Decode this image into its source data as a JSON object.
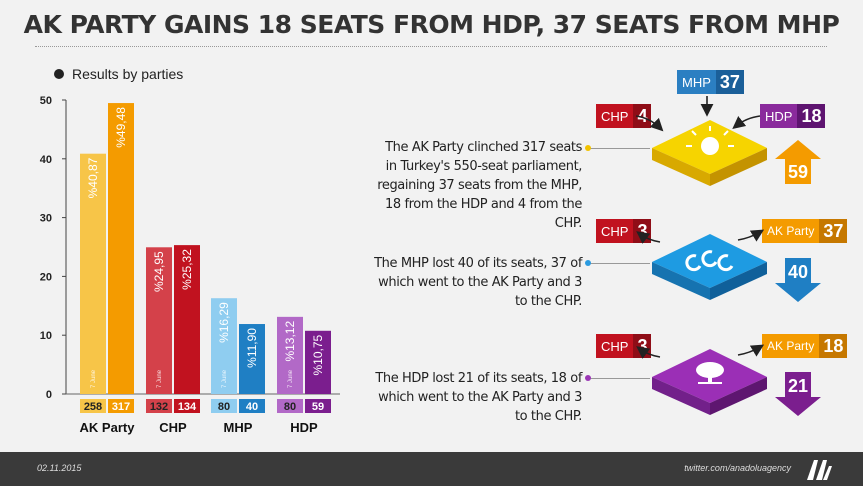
{
  "title": "AK PARTY GAINS 18 SEATS FROM HDP, 37 SEATS FROM MHP",
  "legend_label": "Results by parties",
  "chart_data": {
    "type": "bar",
    "title": "Results by parties",
    "categories": [
      "AK Party",
      "CHP",
      "MHP",
      "HDP"
    ],
    "series": [
      {
        "name": "7 June",
        "values": [
          40.87,
          24.95,
          16.29,
          13.12
        ],
        "labels": [
          "%40,87",
          "%24,95",
          "%16,29",
          "%13,12"
        ],
        "seats": [
          258,
          132,
          80,
          80
        ]
      },
      {
        "values": [
          49.48,
          25.32,
          11.9,
          10.75
        ],
        "labels": [
          "%49,48",
          "%25,32",
          "%11,90",
          "%10,75"
        ],
        "seats": [
          317,
          134,
          40,
          59
        ]
      }
    ],
    "colors": {
      "AK Party": [
        "#f7c548",
        "#f49b00"
      ],
      "CHP": [
        "#d4414a",
        "#c1121f"
      ],
      "MHP": [
        "#8fcdf0",
        "#1f7fc4"
      ],
      "HDP": [
        "#b269c7",
        "#7b1e8e"
      ]
    },
    "ylim": [
      0,
      50
    ],
    "yticks": [
      0,
      10,
      20,
      30,
      40,
      50
    ],
    "grid": false
  },
  "right": {
    "mhp_top": {
      "party": "MHP",
      "value": "37",
      "color": "#2b7fc2"
    },
    "ak": {
      "blurb": "The AK Party clinched 317 seats in Turkey's 550-seat parliament, regaining 37 seats from the MHP, 18 from the HDP and 4 from the CHP.",
      "left": {
        "party": "CHP",
        "value": "4"
      },
      "right": {
        "party": "HDP",
        "value": "18"
      },
      "change": "59",
      "logo": "ak-party-logo-icon"
    },
    "mhp": {
      "blurb": "The MHP lost 40 of its seats, 37 of which went to the AK Party and 3 to the CHP.",
      "left": {
        "party": "CHP",
        "value": "3"
      },
      "right": {
        "party": "AK Party",
        "value": "37"
      },
      "change": "40",
      "logo": "mhp-crescents-icon"
    },
    "hdp": {
      "blurb": "The HDP lost 21 of its seats, 18 of which went to the AK Party and 3 to the CHP.",
      "left": {
        "party": "CHP",
        "value": "3"
      },
      "right": {
        "party": "AK Party",
        "value": "18"
      },
      "change": "21",
      "logo": "hdp-tree-icon"
    }
  },
  "footer": {
    "date": "02.11.2015",
    "handle": "twitter.com/anadoluagency",
    "logo": "aa-logo-icon"
  }
}
